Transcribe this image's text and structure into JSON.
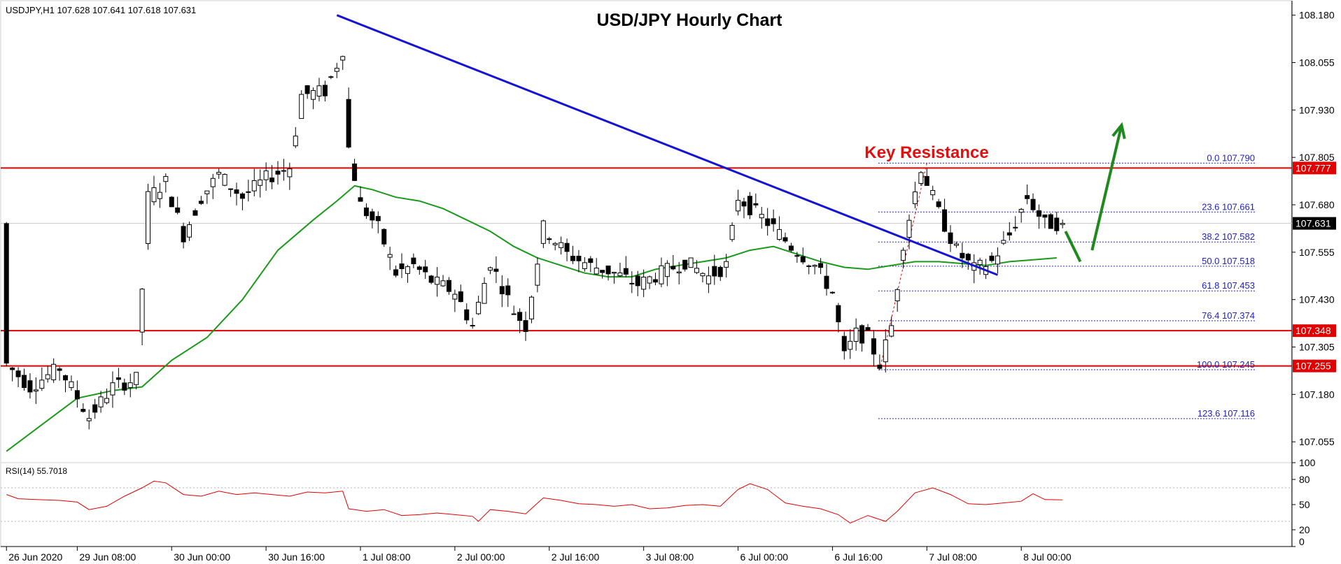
{
  "header": {
    "symbol_info": "USDJPY,H1  107.628 107.641 107.618 107.631",
    "title": "USD/JPY Hourly Chart",
    "key_resistance_label": "Key Resistance"
  },
  "rsi_panel": {
    "label": "RSI(14) 55.7018",
    "scale_labels": [
      "100",
      "80",
      "50",
      "20",
      "0"
    ]
  },
  "colors": {
    "background": "#ffffff",
    "bull_candle": "#ffffff",
    "bear_candle": "#000000",
    "moving_average": "#1a9a1a",
    "trendline": "#1414d2",
    "horizontal_level": "#e00000",
    "fib_line": "#1f1fbf",
    "rsi_line": "#e00000",
    "arrow": "#1e8a1e",
    "title_text": "#000000",
    "key_resistance_text": "#e01010"
  },
  "chart_data": {
    "type": "candlestick",
    "title": "USD/JPY Hourly Chart",
    "symbol": "USDJPY",
    "timeframe": "H1",
    "last_bar": {
      "open": 107.628,
      "high": 107.641,
      "low": 107.618,
      "close": 107.631
    },
    "y_range": [
      107.0,
      108.22
    ],
    "y_ticks": [
      108.18,
      108.055,
      107.93,
      107.805,
      107.68,
      107.555,
      107.43,
      107.305,
      107.18,
      107.055
    ],
    "y_tick_labels": [
      "108.180",
      "108.055",
      "107.930",
      "107.805",
      "107.680",
      "107.555",
      "107.430",
      "107.305",
      "107.180",
      "107.055"
    ],
    "x_tick_labels": [
      "26 Jun 2020",
      "29 Jun 08:00",
      "30 Jun 00:00",
      "30 Jun 16:00",
      "1 Jul 08:00",
      "2 Jul 00:00",
      "2 Jul 16:00",
      "3 Jul 08:00",
      "6 Jul 00:00",
      "6 Jul 16:00",
      "7 Jul 08:00",
      "8 Jul 00:00"
    ],
    "x_tick_bar_index": [
      0,
      12,
      28,
      44,
      60,
      76,
      92,
      108,
      124,
      140,
      156,
      172
    ],
    "candle_count": 180,
    "current_price": {
      "value": 107.631,
      "label": "107.631"
    },
    "horizontal_levels": [
      {
        "value": 107.777,
        "label": "107.777"
      },
      {
        "value": 107.348,
        "label": "107.348"
      },
      {
        "value": 107.255,
        "label": "107.255"
      }
    ],
    "fibonacci": {
      "from_bar": 148,
      "to_bar": 172,
      "levels": [
        {
          "ratio": "0.0",
          "value": 107.79,
          "label": "0.0 107.790"
        },
        {
          "ratio": "23.6",
          "value": 107.661,
          "label": "23.6 107.661"
        },
        {
          "ratio": "38.2",
          "value": 107.582,
          "label": "38.2 107.582"
        },
        {
          "ratio": "50.0",
          "value": 107.518,
          "label": "50.0 107.518"
        },
        {
          "ratio": "61.8",
          "value": 107.453,
          "label": "61.8 107.453"
        },
        {
          "ratio": "76.4",
          "value": 107.374,
          "label": "76.4 107.374"
        },
        {
          "ratio": "100.0",
          "value": 107.245,
          "label": "100.0 107.245"
        },
        {
          "ratio": "123.6",
          "value": 107.116,
          "label": "123.6 107.116"
        }
      ]
    },
    "trendline": {
      "start": {
        "bar": 56,
        "value": 108.18
      },
      "end": {
        "bar": 168,
        "value": 107.495
      }
    },
    "anchor_points": [
      {
        "bar": 0,
        "value": 107.26
      },
      {
        "bar": 4,
        "value": 107.2
      },
      {
        "bar": 9,
        "value": 107.25
      },
      {
        "bar": 14,
        "value": 107.12
      },
      {
        "bar": 18,
        "value": 107.2
      },
      {
        "bar": 22,
        "value": 107.22
      },
      {
        "bar": 24,
        "value": 107.7
      },
      {
        "bar": 27,
        "value": 107.74
      },
      {
        "bar": 30,
        "value": 107.6
      },
      {
        "bar": 33,
        "value": 107.7
      },
      {
        "bar": 36,
        "value": 107.76
      },
      {
        "bar": 40,
        "value": 107.7
      },
      {
        "bar": 44,
        "value": 107.75
      },
      {
        "bar": 48,
        "value": 107.78
      },
      {
        "bar": 50,
        "value": 107.97
      },
      {
        "bar": 54,
        "value": 107.98
      },
      {
        "bar": 56,
        "value": 108.05
      },
      {
        "bar": 57,
        "value": 108.09
      },
      {
        "bar": 58,
        "value": 107.83
      },
      {
        "bar": 60,
        "value": 107.68
      },
      {
        "bar": 63,
        "value": 107.62
      },
      {
        "bar": 66,
        "value": 107.5
      },
      {
        "bar": 69,
        "value": 107.52
      },
      {
        "bar": 72,
        "value": 107.48
      },
      {
        "bar": 76,
        "value": 107.45
      },
      {
        "bar": 79,
        "value": 107.36
      },
      {
        "bar": 82,
        "value": 107.53
      },
      {
        "bar": 86,
        "value": 107.4
      },
      {
        "bar": 88,
        "value": 107.36
      },
      {
        "bar": 91,
        "value": 107.62
      },
      {
        "bar": 95,
        "value": 107.55
      },
      {
        "bar": 99,
        "value": 107.52
      },
      {
        "bar": 103,
        "value": 107.5
      },
      {
        "bar": 107,
        "value": 107.47
      },
      {
        "bar": 111,
        "value": 107.5
      },
      {
        "bar": 115,
        "value": 107.53
      },
      {
        "bar": 119,
        "value": 107.49
      },
      {
        "bar": 122,
        "value": 107.52
      },
      {
        "bar": 124,
        "value": 107.7
      },
      {
        "bar": 127,
        "value": 107.66
      },
      {
        "bar": 130,
        "value": 107.62
      },
      {
        "bar": 133,
        "value": 107.57
      },
      {
        "bar": 137,
        "value": 107.52
      },
      {
        "bar": 140,
        "value": 107.45
      },
      {
        "bar": 142,
        "value": 107.28
      },
      {
        "bar": 144,
        "value": 107.34
      },
      {
        "bar": 146,
        "value": 107.33
      },
      {
        "bar": 148,
        "value": 107.26
      },
      {
        "bar": 150,
        "value": 107.36
      },
      {
        "bar": 152,
        "value": 107.58
      },
      {
        "bar": 155,
        "value": 107.78
      },
      {
        "bar": 158,
        "value": 107.66
      },
      {
        "bar": 161,
        "value": 107.56
      },
      {
        "bar": 164,
        "value": 107.51
      },
      {
        "bar": 167,
        "value": 107.53
      },
      {
        "bar": 170,
        "value": 107.6
      },
      {
        "bar": 173,
        "value": 107.7
      },
      {
        "bar": 176,
        "value": 107.63
      },
      {
        "bar": 179,
        "value": 107.631
      }
    ],
    "moving_average_points": [
      {
        "bar": 0,
        "value": 107.03
      },
      {
        "bar": 6,
        "value": 107.1
      },
      {
        "bar": 12,
        "value": 107.17
      },
      {
        "bar": 18,
        "value": 107.19
      },
      {
        "bar": 23,
        "value": 107.2
      },
      {
        "bar": 28,
        "value": 107.27
      },
      {
        "bar": 34,
        "value": 107.33
      },
      {
        "bar": 40,
        "value": 107.43
      },
      {
        "bar": 46,
        "value": 107.56
      },
      {
        "bar": 52,
        "value": 107.64
      },
      {
        "bar": 56,
        "value": 107.69
      },
      {
        "bar": 59,
        "value": 107.73
      },
      {
        "bar": 62,
        "value": 107.72
      },
      {
        "bar": 66,
        "value": 107.7
      },
      {
        "bar": 70,
        "value": 107.69
      },
      {
        "bar": 74,
        "value": 107.67
      },
      {
        "bar": 78,
        "value": 107.64
      },
      {
        "bar": 82,
        "value": 107.61
      },
      {
        "bar": 86,
        "value": 107.57
      },
      {
        "bar": 90,
        "value": 107.54
      },
      {
        "bar": 94,
        "value": 107.52
      },
      {
        "bar": 98,
        "value": 107.5
      },
      {
        "bar": 102,
        "value": 107.49
      },
      {
        "bar": 106,
        "value": 107.49
      },
      {
        "bar": 110,
        "value": 107.51
      },
      {
        "bar": 114,
        "value": 107.52
      },
      {
        "bar": 118,
        "value": 107.53
      },
      {
        "bar": 122,
        "value": 107.54
      },
      {
        "bar": 126,
        "value": 107.56
      },
      {
        "bar": 130,
        "value": 107.57
      },
      {
        "bar": 134,
        "value": 107.55
      },
      {
        "bar": 138,
        "value": 107.53
      },
      {
        "bar": 142,
        "value": 107.515
      },
      {
        "bar": 146,
        "value": 107.51
      },
      {
        "bar": 150,
        "value": 107.52
      },
      {
        "bar": 154,
        "value": 107.53
      },
      {
        "bar": 158,
        "value": 107.53
      },
      {
        "bar": 162,
        "value": 107.525
      },
      {
        "bar": 166,
        "value": 107.52
      },
      {
        "bar": 170,
        "value": 107.53
      },
      {
        "bar": 174,
        "value": 107.535
      },
      {
        "bar": 178,
        "value": 107.54
      }
    ],
    "arrows": [
      {
        "from": {
          "bar": 179.5,
          "value": 107.61
        },
        "to": {
          "bar": 182,
          "value": 107.53
        }
      },
      {
        "from": {
          "bar": 184,
          "value": 107.56
        },
        "to": {
          "bar": 189,
          "value": 107.89
        }
      }
    ],
    "rsi": {
      "period": 14,
      "last_value": 55.7018,
      "y_range": [
        0,
        100
      ],
      "levels": [
        70,
        30
      ],
      "points": [
        {
          "bar": 0,
          "value": 62
        },
        {
          "bar": 2,
          "value": 57
        },
        {
          "bar": 5,
          "value": 56
        },
        {
          "bar": 9,
          "value": 55
        },
        {
          "bar": 12,
          "value": 53
        },
        {
          "bar": 14,
          "value": 44
        },
        {
          "bar": 17,
          "value": 48
        },
        {
          "bar": 20,
          "value": 60
        },
        {
          "bar": 23,
          "value": 70
        },
        {
          "bar": 25,
          "value": 78
        },
        {
          "bar": 27,
          "value": 76
        },
        {
          "bar": 30,
          "value": 62
        },
        {
          "bar": 33,
          "value": 60
        },
        {
          "bar": 36,
          "value": 66
        },
        {
          "bar": 39,
          "value": 62
        },
        {
          "bar": 42,
          "value": 64
        },
        {
          "bar": 45,
          "value": 62
        },
        {
          "bar": 48,
          "value": 60
        },
        {
          "bar": 51,
          "value": 65
        },
        {
          "bar": 54,
          "value": 64
        },
        {
          "bar": 57,
          "value": 66
        },
        {
          "bar": 58,
          "value": 45
        },
        {
          "bar": 61,
          "value": 42
        },
        {
          "bar": 64,
          "value": 44
        },
        {
          "bar": 67,
          "value": 37
        },
        {
          "bar": 70,
          "value": 38
        },
        {
          "bar": 73,
          "value": 40
        },
        {
          "bar": 76,
          "value": 38
        },
        {
          "bar": 79,
          "value": 36
        },
        {
          "bar": 80,
          "value": 30
        },
        {
          "bar": 82,
          "value": 44
        },
        {
          "bar": 85,
          "value": 42
        },
        {
          "bar": 88,
          "value": 39
        },
        {
          "bar": 91,
          "value": 58
        },
        {
          "bar": 94,
          "value": 55
        },
        {
          "bar": 97,
          "value": 51
        },
        {
          "bar": 100,
          "value": 50
        },
        {
          "bar": 103,
          "value": 48
        },
        {
          "bar": 106,
          "value": 50
        },
        {
          "bar": 109,
          "value": 45
        },
        {
          "bar": 112,
          "value": 46
        },
        {
          "bar": 115,
          "value": 49
        },
        {
          "bar": 118,
          "value": 50
        },
        {
          "bar": 121,
          "value": 48
        },
        {
          "bar": 124,
          "value": 68
        },
        {
          "bar": 126,
          "value": 75
        },
        {
          "bar": 129,
          "value": 68
        },
        {
          "bar": 132,
          "value": 52
        },
        {
          "bar": 135,
          "value": 48
        },
        {
          "bar": 138,
          "value": 45
        },
        {
          "bar": 141,
          "value": 38
        },
        {
          "bar": 143,
          "value": 28
        },
        {
          "bar": 146,
          "value": 37
        },
        {
          "bar": 149,
          "value": 30
        },
        {
          "bar": 151,
          "value": 42
        },
        {
          "bar": 154,
          "value": 64
        },
        {
          "bar": 157,
          "value": 70
        },
        {
          "bar": 160,
          "value": 62
        },
        {
          "bar": 163,
          "value": 51
        },
        {
          "bar": 166,
          "value": 50
        },
        {
          "bar": 169,
          "value": 52
        },
        {
          "bar": 172,
          "value": 54
        },
        {
          "bar": 174,
          "value": 63
        },
        {
          "bar": 176,
          "value": 56
        },
        {
          "bar": 179,
          "value": 55.7
        }
      ]
    }
  }
}
